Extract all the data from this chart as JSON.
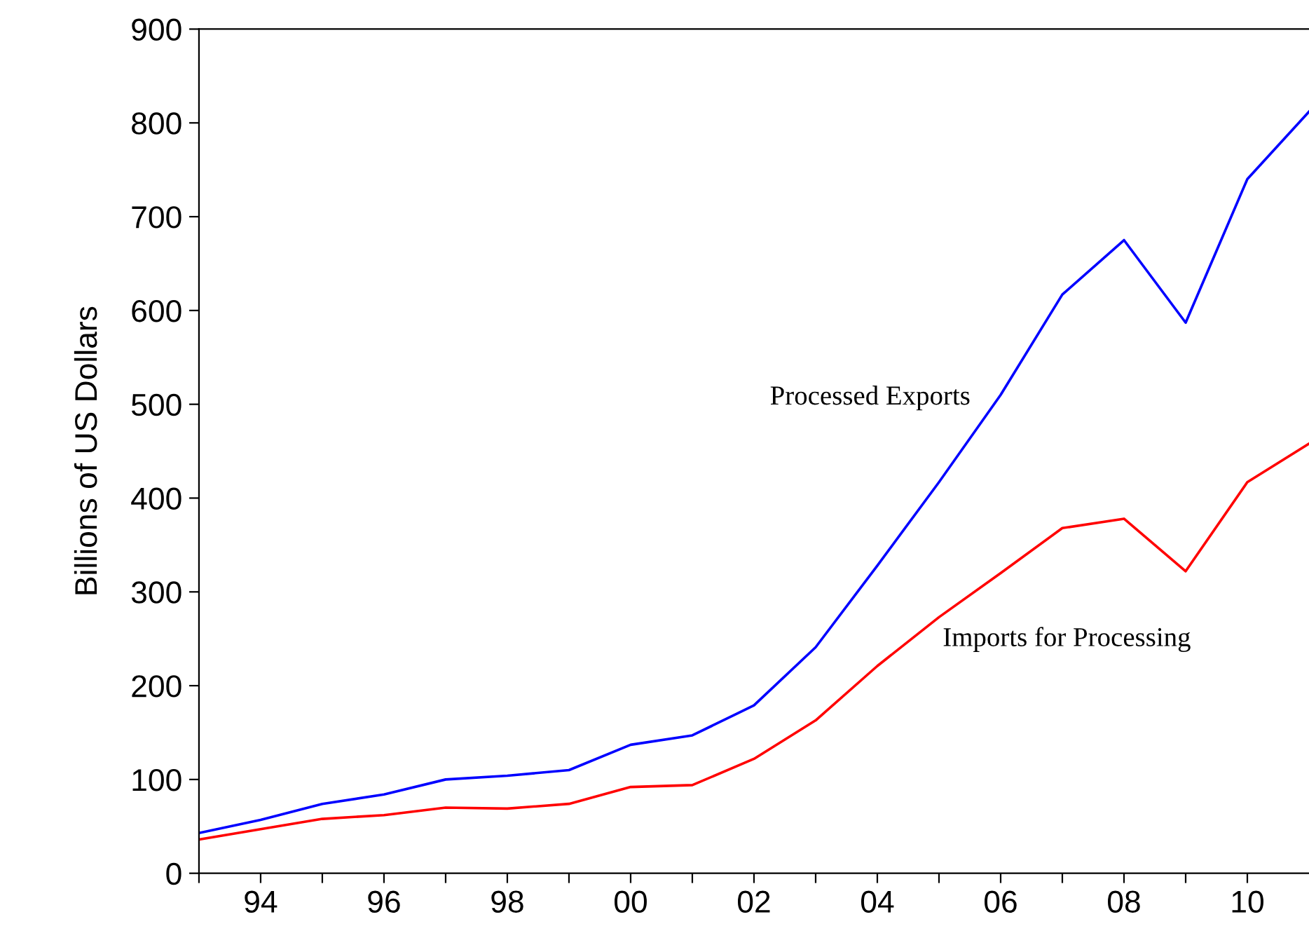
{
  "chart_data": {
    "type": "line",
    "ylabel": "Billions of US Dollars",
    "x": [
      1993,
      1994,
      1995,
      1996,
      1997,
      1998,
      1999,
      2000,
      2001,
      2002,
      2003,
      2004,
      2005,
      2006,
      2007,
      2008,
      2009,
      2010,
      2011
    ],
    "series": [
      {
        "name": "Processed Exports",
        "color": "#0000ff",
        "values": [
          43,
          57,
          74,
          84,
          100,
          104,
          110,
          137,
          147,
          179,
          241,
          328,
          417,
          510,
          617,
          675,
          587,
          740,
          812
        ]
      },
      {
        "name": "Imports for Processing",
        "color": "#ff0000",
        "values": [
          36,
          47,
          58,
          62,
          70,
          69,
          74,
          92,
          94,
          122,
          163,
          221,
          273,
          320,
          368,
          378,
          322,
          417,
          458
        ]
      }
    ],
    "xlim": [
      1993,
      2011
    ],
    "xticks": [
      {
        "value": 1993,
        "label": null
      },
      {
        "value": 1994,
        "label": "94"
      },
      {
        "value": 1995,
        "label": null
      },
      {
        "value": 1996,
        "label": "96"
      },
      {
        "value": 1997,
        "label": null
      },
      {
        "value": 1998,
        "label": "98"
      },
      {
        "value": 1999,
        "label": null
      },
      {
        "value": 2000,
        "label": "00"
      },
      {
        "value": 2001,
        "label": null
      },
      {
        "value": 2002,
        "label": "02"
      },
      {
        "value": 2003,
        "label": null
      },
      {
        "value": 2004,
        "label": "04"
      },
      {
        "value": 2005,
        "label": null
      },
      {
        "value": 2006,
        "label": "06"
      },
      {
        "value": 2007,
        "label": null
      },
      {
        "value": 2008,
        "label": "08"
      },
      {
        "value": 2009,
        "label": null
      },
      {
        "value": 2010,
        "label": "10"
      }
    ],
    "ylim": [
      0,
      900
    ],
    "yticks": [
      0,
      100,
      200,
      300,
      400,
      500,
      600,
      700,
      800,
      900
    ],
    "grid": false,
    "legend": false,
    "marker": "none",
    "line_style": "solid"
  }
}
